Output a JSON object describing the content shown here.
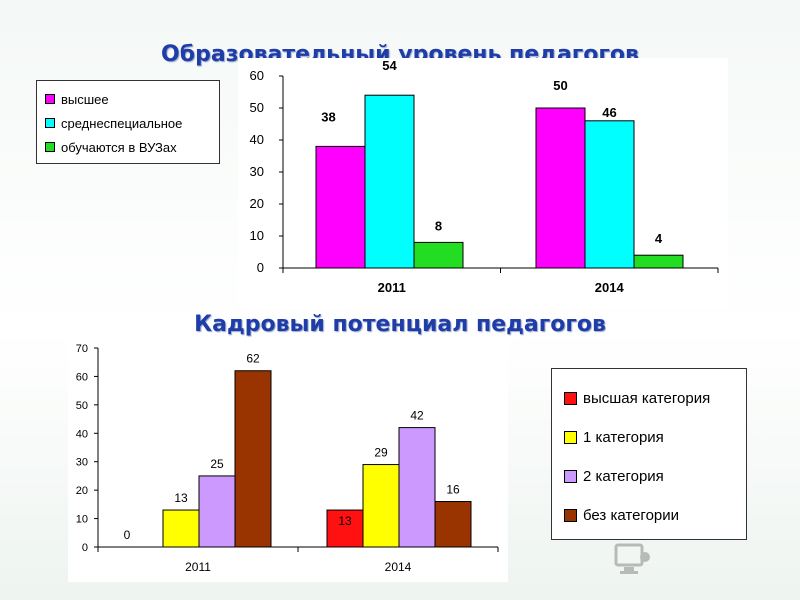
{
  "chart_data": [
    {
      "type": "bar",
      "title": "Образовательный уровень педагогов",
      "categories": [
        "2011",
        "2014"
      ],
      "series": [
        {
          "name": "высшее",
          "color": "#ff00ff",
          "values": [
            38,
            50
          ]
        },
        {
          "name": "среднеспециальное",
          "color": "#00ffff",
          "values": [
            54,
            46
          ]
        },
        {
          "name": "обучаются в ВУЗах",
          "color": "#22dd22",
          "values": [
            8,
            4
          ]
        }
      ],
      "ylim": [
        0,
        60
      ],
      "yticks": [
        "0",
        "10",
        "20",
        "30",
        "40",
        "50",
        "60"
      ],
      "xlabel": "",
      "ylabel": "",
      "grid": false,
      "legend": "left"
    },
    {
      "type": "bar",
      "title": "Кадровый потенциал педагогов",
      "categories": [
        "2011",
        "2014"
      ],
      "series": [
        {
          "name": "высшая категория",
          "color": "#ff1111",
          "values": [
            0,
            13
          ]
        },
        {
          "name": "1 категория",
          "color": "#ffff00",
          "values": [
            13,
            29
          ]
        },
        {
          "name": "2 категория",
          "color": "#cc99ff",
          "values": [
            25,
            42
          ]
        },
        {
          "name": "без категории",
          "color": "#993300",
          "values": [
            62,
            16
          ]
        }
      ],
      "ylim": [
        0,
        70
      ],
      "yticks": [
        "0",
        "10",
        "20",
        "30",
        "40",
        "50",
        "60",
        "70"
      ],
      "xlabel": "",
      "ylabel": "",
      "grid": false,
      "legend": "right"
    }
  ]
}
